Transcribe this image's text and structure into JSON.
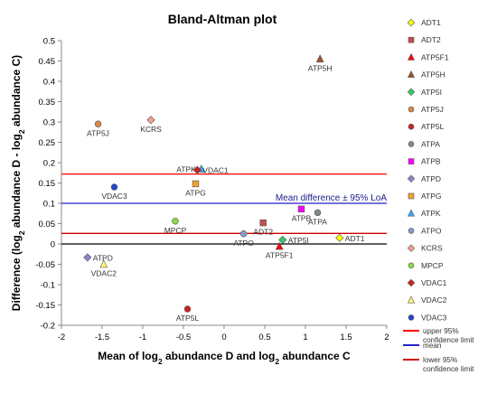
{
  "chart_data": {
    "type": "scatter",
    "title": "Bland-Altman plot",
    "xlabel": {
      "parts": [
        "Mean of log",
        "2",
        " abundance D and log",
        "2",
        " abundance C"
      ]
    },
    "ylabel": {
      "parts": [
        "Difference (log",
        "2",
        " abundance D - log",
        "2",
        " abundance C)"
      ]
    },
    "xlim": [
      -2,
      2
    ],
    "ylim": [
      -0.2,
      0.5
    ],
    "xticks": [
      "-2",
      "-1.5",
      "-1",
      "-0.5",
      "0",
      "0.5",
      "1",
      "1.5",
      "2"
    ],
    "xtick_values": [
      -2,
      -1.5,
      -1,
      -0.5,
      0,
      0.5,
      1,
      1.5,
      2
    ],
    "yticks": [
      "-0.2",
      "-0.15",
      "-0.1",
      "-0.05",
      "0",
      "0.05",
      "0.1",
      "0.15",
      "0.2",
      "0.25",
      "0.3",
      "0.35",
      "0.4",
      "0.45",
      "0.5"
    ],
    "ytick_values": [
      -0.2,
      -0.15,
      -0.1,
      -0.05,
      0,
      0.05,
      0.1,
      0.15,
      0.2,
      0.25,
      0.3,
      0.35,
      0.4,
      0.45,
      0.5
    ],
    "grid": false,
    "legend_position": "right",
    "reference_lines": [
      {
        "name": "upper 95% confidence limit",
        "y": 0.172,
        "color": "#ff0000"
      },
      {
        "name": "mean",
        "y": 0.1,
        "color": "#2222cc"
      },
      {
        "name": "lower 95% confidence limit",
        "y": 0.026,
        "color": "#cc0000"
      },
      {
        "name": "",
        "y": 0,
        "color": "#000000"
      }
    ],
    "annotation": "Mean difference ± 95% LoA",
    "points": [
      {
        "name": "ADT1",
        "x": 1.42,
        "y": 0.015,
        "marker": "diamond",
        "color": "#ffff00",
        "label_pos": "right"
      },
      {
        "name": "ADT2",
        "x": 0.48,
        "y": 0.052,
        "marker": "square",
        "color": "#c0504d",
        "label_pos": "below"
      },
      {
        "name": "ATP5F1",
        "x": 0.68,
        "y": -0.006,
        "marker": "triangle",
        "color": "#ff0000",
        "label_pos": "below"
      },
      {
        "name": "ATP5H",
        "x": 1.18,
        "y": 0.455,
        "marker": "triangle",
        "color": "#a0522d",
        "label_pos": "below"
      },
      {
        "name": "ATP5I",
        "x": 0.72,
        "y": 0.01,
        "marker": "diamond",
        "color": "#33cc66",
        "label_pos": "right"
      },
      {
        "name": "ATP5J",
        "x": -1.55,
        "y": 0.295,
        "marker": "circle",
        "color": "#dd8844",
        "label_pos": "below"
      },
      {
        "name": "ATP5L",
        "x": -0.45,
        "y": -0.16,
        "marker": "circle",
        "color": "#cc2222",
        "label_pos": "below"
      },
      {
        "name": "ATPA",
        "x": 1.15,
        "y": 0.077,
        "marker": "circle",
        "color": "#888888",
        "label_pos": "below"
      },
      {
        "name": "ATPB",
        "x": 0.95,
        "y": 0.086,
        "marker": "square",
        "color": "#ff00ff",
        "label_pos": "below"
      },
      {
        "name": "ATPD",
        "x": -1.68,
        "y": -0.033,
        "marker": "diamond",
        "color": "#8888cc",
        "label_pos": "right"
      },
      {
        "name": "ATPG",
        "x": -0.35,
        "y": 0.148,
        "marker": "square",
        "color": "#f0a030",
        "label_pos": "below"
      },
      {
        "name": "ATPK",
        "x": -0.28,
        "y": 0.184,
        "marker": "triangle",
        "color": "#33aaff",
        "label_pos": "left"
      },
      {
        "name": "ATPO",
        "x": 0.24,
        "y": 0.025,
        "marker": "circle",
        "color": "#8899cc",
        "label_pos": "below"
      },
      {
        "name": "KCRS",
        "x": -0.9,
        "y": 0.305,
        "marker": "diamond",
        "color": "#f4a090",
        "label_pos": "below"
      },
      {
        "name": "MPCP",
        "x": -0.6,
        "y": 0.056,
        "marker": "circle",
        "color": "#88dd44",
        "label_pos": "below"
      },
      {
        "name": "VDAC1",
        "x": -0.33,
        "y": 0.182,
        "marker": "diamond",
        "color": "#cc2222",
        "label_pos": "right"
      },
      {
        "name": "VDAC2",
        "x": -1.48,
        "y": -0.05,
        "marker": "triangle",
        "color": "#ffff66",
        "label_pos": "below"
      },
      {
        "name": "VDAC3",
        "x": -1.35,
        "y": 0.14,
        "marker": "circle",
        "color": "#2244cc",
        "label_pos": "below"
      }
    ]
  }
}
